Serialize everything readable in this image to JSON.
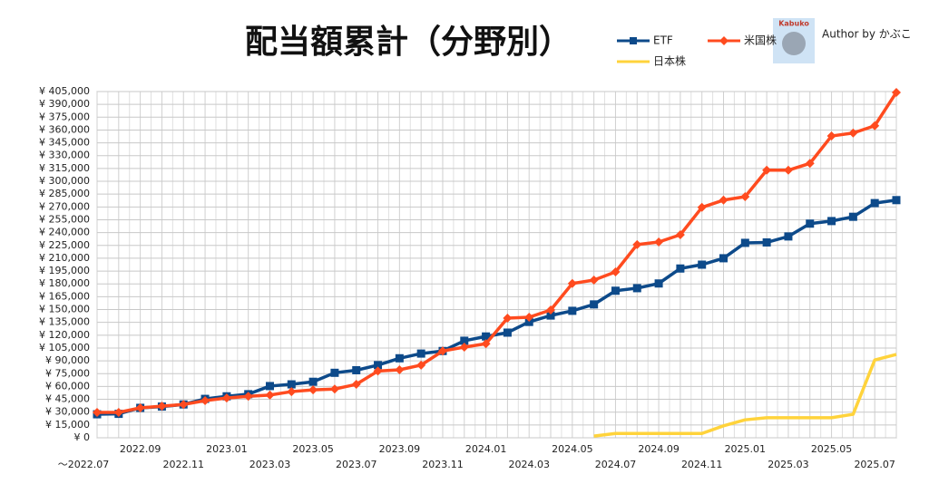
{
  "chart_data": {
    "type": "line",
    "title": "配当額累計（分野別）",
    "author": "Author by かぶこ",
    "logo_text": "Kabuko",
    "categories": [
      "～2022.07",
      null,
      "2022.09",
      null,
      "2022.11",
      null,
      "2023.01",
      null,
      "2023.03",
      null,
      "2023.05",
      null,
      "2023.07",
      null,
      "2023.09",
      null,
      "2023.11",
      null,
      "2024.01",
      null,
      "2024.03",
      null,
      "2024.05",
      null,
      "2024.07",
      null,
      "2024.09",
      null,
      "2024.11",
      null,
      "2025.01",
      null,
      "2025.03",
      null,
      "2025.05",
      null,
      "2025.07",
      null
    ],
    "series": [
      {
        "name": "ETF",
        "color": "#0d4a8a",
        "marker": "square",
        "values": [
          27500,
          28000,
          35000,
          36500,
          39000,
          45500,
          48500,
          51000,
          60500,
          62500,
          65500,
          76000,
          79000,
          85000,
          93000,
          98500,
          101500,
          113500,
          118500,
          123000,
          135500,
          143000,
          148500,
          156000,
          172000,
          175000,
          180500,
          198000,
          202500,
          210000,
          228000,
          228500,
          235500,
          250500,
          253500,
          258500,
          274500,
          278000
        ]
      },
      {
        "name": "米国株",
        "color": "#ff4b1f",
        "marker": "diamond",
        "values": [
          29700,
          29700,
          35000,
          37000,
          39000,
          43500,
          46500,
          48500,
          50000,
          54000,
          56000,
          57000,
          62500,
          78000,
          79500,
          85000,
          101500,
          106000,
          110000,
          140000,
          141000,
          149500,
          180500,
          184500,
          194000,
          226000,
          229000,
          237500,
          269500,
          278000,
          282000,
          313000,
          313000,
          321000,
          353000,
          356500,
          365000,
          404000
        ]
      },
      {
        "name": "日本株",
        "color": "#ffd33b",
        "marker": "none",
        "values": [
          null,
          null,
          null,
          null,
          null,
          null,
          null,
          null,
          null,
          null,
          null,
          null,
          null,
          null,
          null,
          null,
          null,
          null,
          null,
          null,
          null,
          null,
          null,
          2000,
          5000,
          5000,
          5000,
          5000,
          5000,
          14000,
          21000,
          23500,
          23500,
          23500,
          23500,
          27500,
          91000,
          97500
        ]
      }
    ],
    "ylim": [
      0,
      405000
    ],
    "yticks": [
      {
        "value": 0,
        "label": "¥ 0"
      },
      {
        "value": 15000,
        "label": "¥ 15,000"
      },
      {
        "value": 30000,
        "label": "¥ 30,000"
      },
      {
        "value": 45000,
        "label": "¥ 45,000"
      },
      {
        "value": 60000,
        "label": "¥ 60,000"
      },
      {
        "value": 75000,
        "label": "¥ 75,000"
      },
      {
        "value": 90000,
        "label": "¥ 90,000"
      },
      {
        "value": 105000,
        "label": "¥ 105,000"
      },
      {
        "value": 120000,
        "label": "¥ 120,000"
      },
      {
        "value": 135000,
        "label": "¥ 135,000"
      },
      {
        "value": 150000,
        "label": "¥ 150,000"
      },
      {
        "value": 165000,
        "label": "¥ 165,000"
      },
      {
        "value": 180000,
        "label": "¥ 180,000"
      },
      {
        "value": 195000,
        "label": "¥ 195,000"
      },
      {
        "value": 210000,
        "label": "¥ 210,000"
      },
      {
        "value": 225000,
        "label": "¥ 225,000"
      },
      {
        "value": 240000,
        "label": "¥ 240,000"
      },
      {
        "value": 255000,
        "label": "¥ 255,000"
      },
      {
        "value": 270000,
        "label": "¥ 270,000"
      },
      {
        "value": 285000,
        "label": "¥ 285,000"
      },
      {
        "value": 300000,
        "label": "¥ 300,000"
      },
      {
        "value": 315000,
        "label": "¥ 315,000"
      },
      {
        "value": 330000,
        "label": "¥ 330,000"
      },
      {
        "value": 345000,
        "label": "¥ 345,000"
      },
      {
        "value": 360000,
        "label": "¥ 360,000"
      },
      {
        "value": 375000,
        "label": "¥ 375,000"
      },
      {
        "value": 390000,
        "label": "¥ 390,000"
      },
      {
        "value": 405000,
        "label": "¥ 405,000"
      }
    ],
    "grid": true
  }
}
